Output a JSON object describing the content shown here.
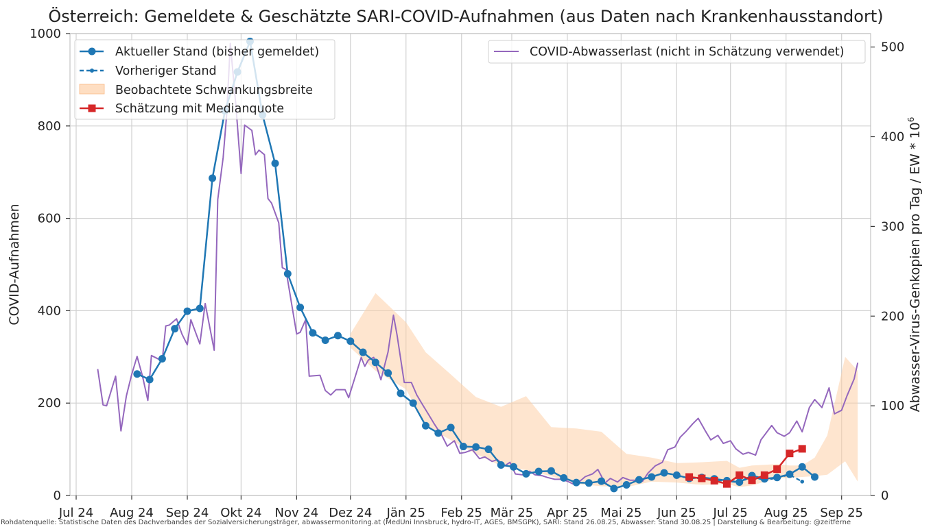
{
  "chart_data": {
    "type": "line",
    "title": "Österreich: Gemeldete & Geschätzte SARI-COVID-Aufnahmen (aus Daten nach Krankenhausstandort)",
    "ylabel": "COVID-Aufnahmen",
    "ylabel_right": "Abwasser-Virus-Genkopien pro Tag / EW * 10",
    "ylabel_right_superscript": "6",
    "ylim": [
      0,
      1000
    ],
    "ylim_right": [
      0,
      515
    ],
    "x_ticks": [
      "Jul 24",
      "Aug 24",
      "Sep 24",
      "Okt 24",
      "Nov 24",
      "Dez 24",
      "Jän 25",
      "Feb 25",
      "Mär 25",
      "Apr 25",
      "Mai 25",
      "Jun 25",
      "Jul 25",
      "Aug 25",
      "Sep 25"
    ],
    "y_ticks": [
      "0",
      "200",
      "400",
      "600",
      "800",
      "1000"
    ],
    "y_ticks_right": [
      "0",
      "100",
      "200",
      "300",
      "400",
      "500"
    ],
    "grid": true,
    "legend_left": [
      "Aktueller Stand (bisher gemeldet)",
      "Vorheriger Stand",
      "Beobachtete Schwankungsbreite",
      "Schätzung mit Medianquote"
    ],
    "legend_right": [
      "COVID-Abwasserlast (nicht in Schätzung verwendet)"
    ],
    "colors": {
      "aktuell": "#1f77b4",
      "vorherig": "#1f77b4",
      "band": "#fdd0a8",
      "schaetzung": "#d62728",
      "abwasser": "#9467bd",
      "grid": "#d0d0d0"
    },
    "series": [
      {
        "name": "Aktueller Stand (bisher gemeldet)",
        "axis": "left",
        "points": [
          [
            "2024-08-04",
            263
          ],
          [
            "2024-08-11",
            251
          ],
          [
            "2024-08-18",
            296
          ],
          [
            "2024-08-25",
            361
          ],
          [
            "2024-09-01",
            399
          ],
          [
            "2024-09-08",
            405
          ],
          [
            "2024-09-15",
            687
          ],
          [
            "2024-09-22",
            833
          ],
          [
            "2024-09-29",
            917
          ],
          [
            "2024-10-06",
            983
          ],
          [
            "2024-10-13",
            824
          ],
          [
            "2024-10-20",
            719
          ],
          [
            "2024-10-27",
            480
          ],
          [
            "2024-11-03",
            407
          ],
          [
            "2024-11-10",
            352
          ],
          [
            "2024-11-17",
            336
          ],
          [
            "2024-11-24",
            346
          ],
          [
            "2024-12-01",
            334
          ],
          [
            "2024-12-08",
            310
          ],
          [
            "2024-12-15",
            288
          ],
          [
            "2024-12-22",
            265
          ],
          [
            "2024-12-29",
            221
          ],
          [
            "2025-01-05",
            200
          ],
          [
            "2025-01-12",
            151
          ],
          [
            "2025-01-19",
            135
          ],
          [
            "2025-01-26",
            147
          ],
          [
            "2025-02-02",
            106
          ],
          [
            "2025-02-09",
            105
          ],
          [
            "2025-02-16",
            100
          ],
          [
            "2025-02-23",
            66
          ],
          [
            "2025-03-02",
            62
          ],
          [
            "2025-03-09",
            47
          ],
          [
            "2025-03-16",
            52
          ],
          [
            "2025-03-23",
            53
          ],
          [
            "2025-03-30",
            38
          ],
          [
            "2025-04-06",
            28
          ],
          [
            "2025-04-13",
            27
          ],
          [
            "2025-04-20",
            31
          ],
          [
            "2025-04-27",
            15
          ],
          [
            "2025-05-04",
            23
          ],
          [
            "2025-05-11",
            34
          ],
          [
            "2025-05-18",
            40
          ],
          [
            "2025-05-25",
            49
          ],
          [
            "2025-06-01",
            44
          ],
          [
            "2025-06-08",
            37
          ],
          [
            "2025-06-15",
            39
          ],
          [
            "2025-06-22",
            36
          ],
          [
            "2025-06-29",
            32
          ],
          [
            "2025-07-06",
            29
          ],
          [
            "2025-07-13",
            43
          ],
          [
            "2025-07-20",
            36
          ],
          [
            "2025-07-27",
            39
          ],
          [
            "2025-08-03",
            46
          ],
          [
            "2025-08-10",
            62
          ],
          [
            "2025-08-17",
            40
          ]
        ]
      },
      {
        "name": "Vorheriger Stand",
        "axis": "left",
        "style": "dashed",
        "points": [
          [
            "2025-06-01",
            42
          ],
          [
            "2025-06-08",
            38
          ],
          [
            "2025-06-15",
            37
          ],
          [
            "2025-06-22",
            34
          ],
          [
            "2025-06-29",
            31
          ],
          [
            "2025-07-06",
            28
          ],
          [
            "2025-07-13",
            41
          ],
          [
            "2025-07-20",
            33
          ],
          [
            "2025-07-27",
            38
          ],
          [
            "2025-08-03",
            45
          ],
          [
            "2025-08-10",
            30
          ]
        ]
      },
      {
        "name": "Schätzung mit Medianquote",
        "axis": "left",
        "points": [
          [
            "2025-06-08",
            40
          ],
          [
            "2025-06-15",
            37
          ],
          [
            "2025-06-22",
            32
          ],
          [
            "2025-06-29",
            25
          ],
          [
            "2025-07-06",
            44
          ],
          [
            "2025-07-13",
            33
          ],
          [
            "2025-07-20",
            44
          ],
          [
            "2025-07-27",
            57
          ],
          [
            "2025-08-03",
            91
          ],
          [
            "2025-08-10",
            101
          ]
        ]
      },
      {
        "name": "COVID-Abwasserlast (nicht in Schätzung verwendet)",
        "axis": "right",
        "points": [
          [
            "2024-07-13",
            141
          ],
          [
            "2024-07-16",
            101
          ],
          [
            "2024-07-18",
            100
          ],
          [
            "2024-07-23",
            133
          ],
          [
            "2024-07-26",
            72
          ],
          [
            "2024-07-29",
            111
          ],
          [
            "2024-08-01",
            135
          ],
          [
            "2024-08-04",
            155
          ],
          [
            "2024-08-07",
            133
          ],
          [
            "2024-08-10",
            106
          ],
          [
            "2024-08-12",
            156
          ],
          [
            "2024-08-18",
            150
          ],
          [
            "2024-08-20",
            189
          ],
          [
            "2024-08-22",
            190
          ],
          [
            "2024-08-26",
            197
          ],
          [
            "2024-08-29",
            180
          ],
          [
            "2024-09-01",
            168
          ],
          [
            "2024-09-03",
            196
          ],
          [
            "2024-09-08",
            169
          ],
          [
            "2024-09-11",
            214
          ],
          [
            "2024-09-16",
            162
          ],
          [
            "2024-09-18",
            330
          ],
          [
            "2024-09-21",
            377
          ],
          [
            "2024-09-23",
            426
          ],
          [
            "2024-09-25",
            504
          ],
          [
            "2024-09-28",
            438
          ],
          [
            "2024-10-01",
            359
          ],
          [
            "2024-10-03",
            413
          ],
          [
            "2024-10-07",
            407
          ],
          [
            "2024-10-09",
            380
          ],
          [
            "2024-10-11",
            385
          ],
          [
            "2024-10-14",
            380
          ],
          [
            "2024-10-16",
            331
          ],
          [
            "2024-10-18",
            326
          ],
          [
            "2024-10-22",
            304
          ],
          [
            "2024-10-24",
            254
          ],
          [
            "2024-10-26",
            252
          ],
          [
            "2024-11-01",
            180
          ],
          [
            "2024-11-03",
            182
          ],
          [
            "2024-11-06",
            196
          ],
          [
            "2024-11-08",
            133
          ],
          [
            "2024-11-14",
            134
          ],
          [
            "2024-11-17",
            117
          ],
          [
            "2024-11-20",
            112
          ],
          [
            "2024-11-23",
            118
          ],
          [
            "2024-11-28",
            118
          ],
          [
            "2024-11-30",
            109
          ],
          [
            "2024-12-07",
            154
          ],
          [
            "2024-12-09",
            144
          ],
          [
            "2024-12-11",
            151
          ],
          [
            "2024-12-14",
            154
          ],
          [
            "2024-12-18",
            129
          ],
          [
            "2024-12-22",
            160
          ],
          [
            "2024-12-25",
            201
          ],
          [
            "2024-12-27",
            179
          ],
          [
            "2024-12-31",
            126
          ],
          [
            "2025-01-04",
            126
          ],
          [
            "2025-01-07",
            112
          ],
          [
            "2025-01-10",
            102
          ],
          [
            "2025-01-14",
            89
          ],
          [
            "2025-01-17",
            79
          ],
          [
            "2025-01-21",
            67
          ],
          [
            "2025-01-24",
            55
          ],
          [
            "2025-01-28",
            61
          ],
          [
            "2025-01-31",
            47
          ],
          [
            "2025-02-03",
            48
          ],
          [
            "2025-02-07",
            51
          ],
          [
            "2025-02-11",
            41
          ],
          [
            "2025-02-14",
            43
          ],
          [
            "2025-02-18",
            38
          ],
          [
            "2025-02-21",
            40
          ],
          [
            "2025-02-25",
            33
          ],
          [
            "2025-02-28",
            37
          ],
          [
            "2025-03-03",
            24
          ],
          [
            "2025-03-07",
            23
          ],
          [
            "2025-03-11",
            27
          ],
          [
            "2025-03-14",
            23
          ],
          [
            "2025-03-18",
            22
          ],
          [
            "2025-03-21",
            20
          ],
          [
            "2025-03-25",
            18
          ],
          [
            "2025-03-28",
            18
          ],
          [
            "2025-04-01",
            16
          ],
          [
            "2025-04-04",
            13
          ],
          [
            "2025-04-08",
            16
          ],
          [
            "2025-04-11",
            21
          ],
          [
            "2025-04-15",
            24
          ],
          [
            "2025-04-18",
            29
          ],
          [
            "2025-04-22",
            14
          ],
          [
            "2025-04-25",
            19
          ],
          [
            "2025-04-29",
            15
          ],
          [
            "2025-05-02",
            20
          ],
          [
            "2025-05-06",
            17
          ],
          [
            "2025-05-09",
            17
          ],
          [
            "2025-05-13",
            16
          ],
          [
            "2025-05-16",
            25
          ],
          [
            "2025-05-20",
            33
          ],
          [
            "2025-05-24",
            37
          ],
          [
            "2025-05-27",
            51
          ],
          [
            "2025-05-31",
            54
          ],
          [
            "2025-06-03",
            65
          ],
          [
            "2025-06-06",
            71
          ],
          [
            "2025-06-10",
            80
          ],
          [
            "2025-06-13",
            86
          ],
          [
            "2025-06-17",
            72
          ],
          [
            "2025-06-20",
            62
          ],
          [
            "2025-06-24",
            67
          ],
          [
            "2025-06-27",
            58
          ],
          [
            "2025-07-01",
            61
          ],
          [
            "2025-07-04",
            52
          ],
          [
            "2025-07-08",
            46
          ],
          [
            "2025-07-11",
            48
          ],
          [
            "2025-07-15",
            45
          ],
          [
            "2025-07-18",
            62
          ],
          [
            "2025-07-21",
            70
          ],
          [
            "2025-07-24",
            78
          ],
          [
            "2025-07-27",
            70
          ],
          [
            "2025-07-31",
            66
          ],
          [
            "2025-08-03",
            70
          ],
          [
            "2025-08-07",
            83
          ],
          [
            "2025-08-10",
            71
          ],
          [
            "2025-08-14",
            98
          ],
          [
            "2025-08-17",
            107
          ],
          [
            "2025-08-21",
            98
          ],
          [
            "2025-08-25",
            120
          ],
          [
            "2025-08-28",
            91
          ],
          [
            "2025-09-01",
            95
          ],
          [
            "2025-09-04",
            111
          ],
          [
            "2025-09-08",
            130
          ],
          [
            "2025-09-10",
            148
          ]
        ]
      }
    ],
    "band": {
      "name": "Beobachtete Schwankungsbreite",
      "axis": "left",
      "upper": [
        [
          "2024-12-01",
          350
        ],
        [
          "2024-12-15",
          438
        ],
        [
          "2025-01-01",
          375
        ],
        [
          "2025-01-12",
          310
        ],
        [
          "2025-01-26",
          262
        ],
        [
          "2025-02-09",
          213
        ],
        [
          "2025-02-23",
          192
        ],
        [
          "2025-03-09",
          215
        ],
        [
          "2025-03-23",
          148
        ],
        [
          "2025-04-06",
          145
        ],
        [
          "2025-04-20",
          138
        ],
        [
          "2025-05-04",
          90
        ],
        [
          "2025-05-18",
          82
        ],
        [
          "2025-06-01",
          70
        ],
        [
          "2025-06-15",
          72
        ],
        [
          "2025-06-29",
          75
        ],
        [
          "2025-07-06",
          60
        ],
        [
          "2025-07-13",
          65
        ],
        [
          "2025-07-27",
          68
        ],
        [
          "2025-08-03",
          65
        ],
        [
          "2025-08-10",
          65
        ],
        [
          "2025-08-17",
          82
        ],
        [
          "2025-08-24",
          130
        ],
        [
          "2025-09-03",
          300
        ],
        [
          "2025-09-10",
          270
        ]
      ],
      "lower": [
        [
          "2025-09-10",
          30
        ],
        [
          "2025-09-03",
          74
        ],
        [
          "2025-08-24",
          45
        ],
        [
          "2025-08-17",
          42
        ],
        [
          "2025-08-10",
          40
        ],
        [
          "2025-08-03",
          38
        ],
        [
          "2025-07-27",
          37
        ],
        [
          "2025-07-13",
          22
        ],
        [
          "2025-07-06",
          18
        ],
        [
          "2025-06-29",
          25
        ],
        [
          "2025-06-15",
          23
        ],
        [
          "2025-06-01",
          28
        ],
        [
          "2025-05-18",
          30
        ],
        [
          "2025-05-04",
          18
        ],
        [
          "2025-04-20",
          20
        ],
        [
          "2025-04-06",
          25
        ],
        [
          "2025-03-23",
          42
        ],
        [
          "2025-03-09",
          55
        ],
        [
          "2025-02-23",
          64
        ],
        [
          "2025-02-09",
          90
        ],
        [
          "2025-01-26",
          120
        ],
        [
          "2025-01-12",
          150
        ],
        [
          "2025-01-01",
          230
        ],
        [
          "2024-12-15",
          270
        ],
        [
          "2024-12-01",
          320
        ]
      ]
    },
    "source": "Rohdatenquelle: Statistische Daten des Dachverbandes der Sozialversicherungsträger, abwassermonitoring.at (MedUni Innsbruck, hydro-IT, AGES, BMSGPK), SARI: Stand 26.08.25, Abwasser: Stand 30.08.25 | Darstellung & Bearbeitung: @zeitferne"
  }
}
